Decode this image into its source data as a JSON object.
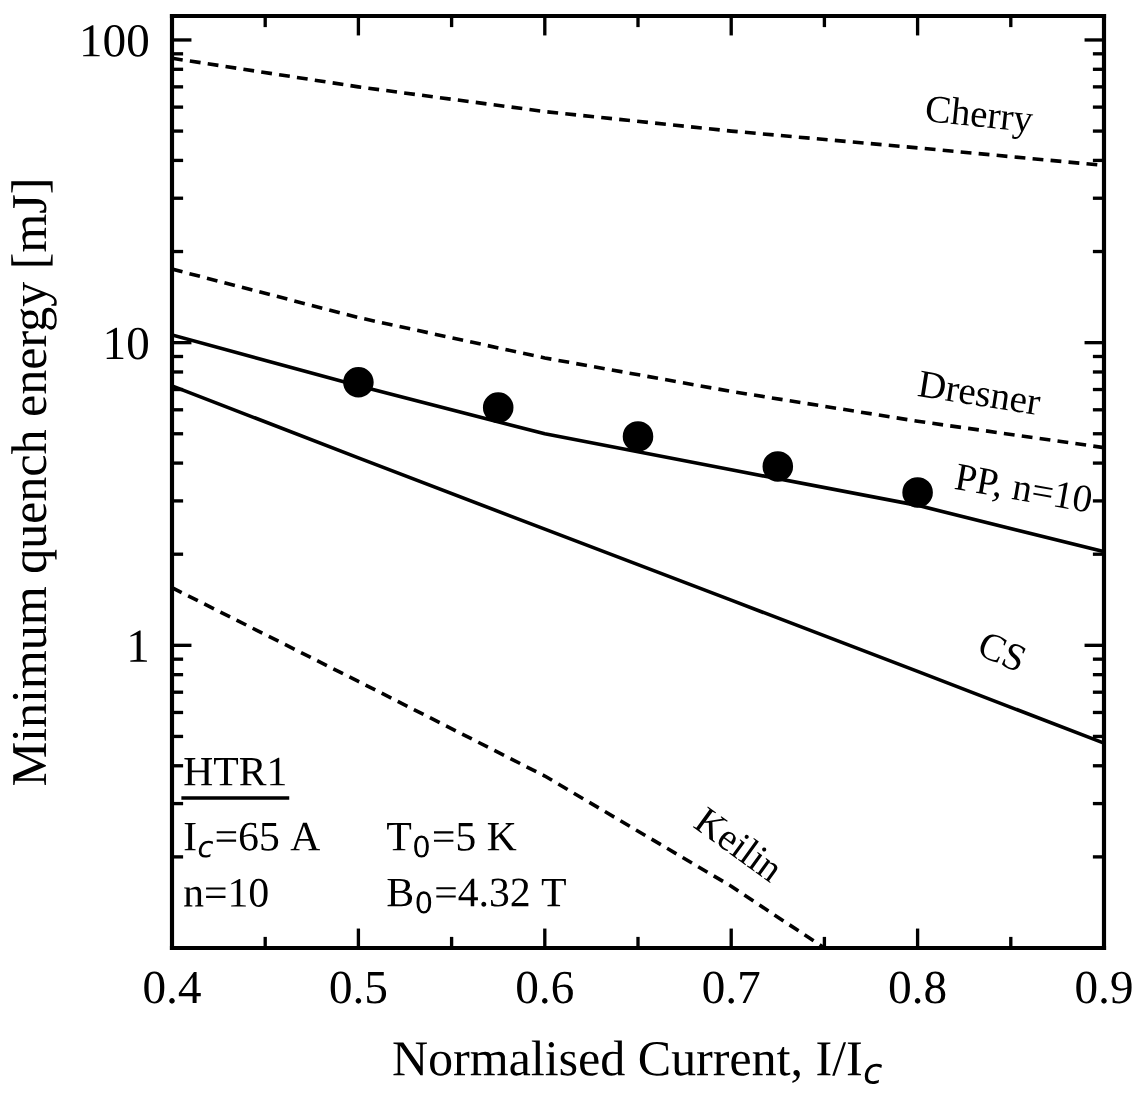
{
  "chart_data": {
    "type": "line",
    "xlabel": "Normalised Current, I/I$_{c}$",
    "ylabel": "Minimum quench energy [mJ]",
    "log": "y",
    "xlim": [
      0.4,
      0.9
    ],
    "ylim": [
      0.1,
      120
    ],
    "xticks": [
      0.4,
      0.5,
      0.6,
      0.7,
      0.8,
      0.9
    ],
    "yticks": [
      {
        "value": 1,
        "label": "1"
      },
      {
        "value": 10,
        "label": "10"
      },
      {
        "value": 100,
        "label": "100"
      }
    ],
    "grid": false,
    "legend": false,
    "series": [
      {
        "type": "line",
        "line_style": "dashed",
        "color": "#000000",
        "x": [
          0.4,
          0.5,
          0.6,
          0.7,
          0.8,
          0.9
        ],
        "values": [
          87,
          70,
          58,
          50,
          44,
          38.5
        ]
      },
      {
        "type": "line",
        "line_style": "dashed",
        "color": "#000000",
        "x": [
          0.4,
          0.5,
          0.6,
          0.7,
          0.8,
          0.9
        ],
        "values": [
          17.5,
          12.1,
          8.9,
          6.9,
          5.5,
          4.5
        ]
      },
      {
        "type": "line",
        "line_style": "solid",
        "color": "#000000",
        "x": [
          0.4,
          0.5,
          0.6,
          0.7,
          0.8,
          0.9
        ],
        "values": [
          10.6,
          7.2,
          5.0,
          3.8,
          2.9,
          2.04
        ]
      },
      {
        "type": "line",
        "line_style": "solid",
        "color": "#000000",
        "x": [
          0.4,
          0.5,
          0.6,
          0.7,
          0.8,
          0.9
        ],
        "values": [
          7.2,
          4.16,
          2.42,
          1.41,
          0.82,
          0.475
        ]
      },
      {
        "type": "line",
        "line_style": "dashed",
        "color": "#000000",
        "x": [
          0.4,
          0.5,
          0.6,
          0.7,
          0.75
        ],
        "values": [
          1.55,
          0.76,
          0.37,
          0.16,
          0.1
        ]
      },
      {
        "type": "scatter",
        "marker": "circle",
        "color": "#000000",
        "x": [
          0.5,
          0.575,
          0.65,
          0.725,
          0.8
        ],
        "values": [
          7.4,
          6.1,
          4.9,
          3.9,
          3.2
        ]
      }
    ],
    "annotations": [
      "Cherry",
      "Dresner",
      "PP, n=10",
      "CS",
      "Keilin",
      "HTR1",
      "I$_{c}$=65 A",
      "T$_{0}$=5 K",
      "n=10",
      "B$_{0}$=4.32 T"
    ]
  }
}
